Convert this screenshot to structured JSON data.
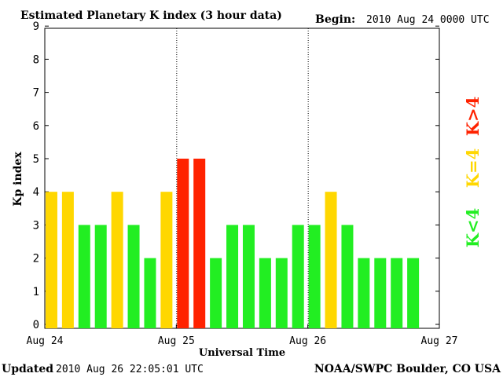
{
  "chart_data": {
    "type": "bar",
    "title": "Estimated Planetary K index (3 hour data)",
    "begin_label": "Begin:",
    "begin_value": "2010 Aug 24 0000 UTC",
    "ylabel": "Kp index",
    "xlabel": "Universal Time",
    "ylim": [
      0,
      9
    ],
    "yticks": [
      "0",
      "1",
      "2",
      "3",
      "4",
      "5",
      "6",
      "7",
      "8",
      "9"
    ],
    "xtick_labels": [
      "Aug 24",
      "Aug 25",
      "Aug 26",
      "Aug 27"
    ],
    "day_dividers_after_bar": [
      8,
      16
    ],
    "total_slots": 24,
    "values": [
      4,
      4,
      3,
      3,
      4,
      3,
      2,
      4,
      5,
      5,
      2,
      3,
      3,
      2,
      2,
      3,
      3,
      4,
      3,
      2,
      2,
      2,
      2
    ],
    "colors": {
      "k_below_4": "#22ee22",
      "k_equal_4": "#ffd700",
      "k_above_4": "#ff2200"
    },
    "legend": [
      {
        "label": "K>4",
        "color_key": "k_above_4"
      },
      {
        "label": "K=4",
        "color_key": "k_equal_4"
      },
      {
        "label": "K<4",
        "color_key": "k_below_4"
      }
    ],
    "updated_label": "Updated",
    "updated_value": "2010 Aug 26 22:05:01 UTC",
    "source": "NOAA/SWPC Boulder, CO USA"
  }
}
